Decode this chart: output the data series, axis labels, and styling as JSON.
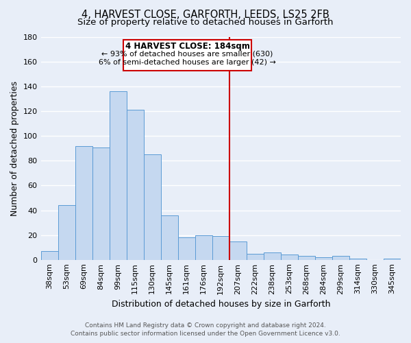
{
  "title": "4, HARVEST CLOSE, GARFORTH, LEEDS, LS25 2FB",
  "subtitle": "Size of property relative to detached houses in Garforth",
  "xlabel": "Distribution of detached houses by size in Garforth",
  "ylabel": "Number of detached properties",
  "bar_labels": [
    "38sqm",
    "53sqm",
    "69sqm",
    "84sqm",
    "99sqm",
    "115sqm",
    "130sqm",
    "145sqm",
    "161sqm",
    "176sqm",
    "192sqm",
    "207sqm",
    "222sqm",
    "238sqm",
    "253sqm",
    "268sqm",
    "284sqm",
    "299sqm",
    "314sqm",
    "330sqm",
    "345sqm"
  ],
  "bar_values": [
    7,
    44,
    92,
    91,
    136,
    121,
    85,
    36,
    18,
    20,
    19,
    15,
    5,
    6,
    4,
    3,
    2,
    3,
    1,
    0,
    1
  ],
  "bar_color": "#c5d8f0",
  "bar_edge_color": "#5b9bd5",
  "ylim": [
    0,
    180
  ],
  "yticks": [
    0,
    20,
    40,
    60,
    80,
    100,
    120,
    140,
    160,
    180
  ],
  "vline_x": 10.5,
  "vline_color": "#cc0000",
  "annotation_title": "4 HARVEST CLOSE: 184sqm",
  "annotation_line1": "← 93% of detached houses are smaller (630)",
  "annotation_line2": "6% of semi-detached houses are larger (42) →",
  "annotation_box_color": "#cc0000",
  "footer_line1": "Contains HM Land Registry data © Crown copyright and database right 2024.",
  "footer_line2": "Contains public sector information licensed under the Open Government Licence v3.0.",
  "bg_color": "#e8eef8",
  "grid_color": "#ffffff",
  "title_fontsize": 10.5,
  "subtitle_fontsize": 9.5,
  "axis_label_fontsize": 9,
  "tick_fontsize": 8
}
